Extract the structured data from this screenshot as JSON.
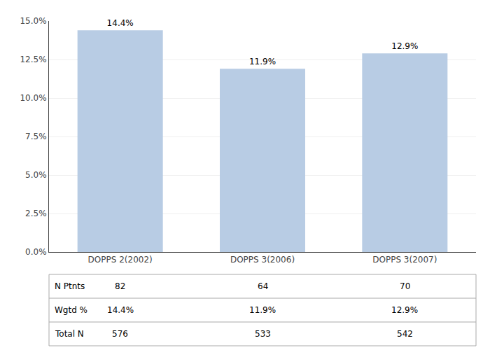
{
  "chart_data": {
    "type": "bar",
    "categories": [
      "DOPPS 2(2002)",
      "DOPPS 3(2006)",
      "DOPPS 3(2007)"
    ],
    "values": [
      14.4,
      11.9,
      12.9
    ],
    "value_labels": [
      "14.4%",
      "11.9%",
      "12.9%"
    ],
    "data_labels": true,
    "color": "#b8cce4",
    "ylim": [
      0,
      15.0
    ],
    "yticks": [
      {
        "value": 0.0,
        "label": "0.0%"
      },
      {
        "value": 2.5,
        "label": "2.5%"
      },
      {
        "value": 5.0,
        "label": "5.0%"
      },
      {
        "value": 7.5,
        "label": "7.5%"
      },
      {
        "value": 10.0,
        "label": "10.0%"
      },
      {
        "value": 12.5,
        "label": "12.5%"
      },
      {
        "value": 15.0,
        "label": "15.0%"
      }
    ],
    "grid": true,
    "table_rows": [
      "N Ptnts",
      "Wgtd %",
      "Total N"
    ],
    "table_data": [
      [
        "82",
        "64",
        "70"
      ],
      [
        "14.4%",
        "11.9%",
        "12.9%"
      ],
      [
        "576",
        "533",
        "542"
      ]
    ]
  }
}
